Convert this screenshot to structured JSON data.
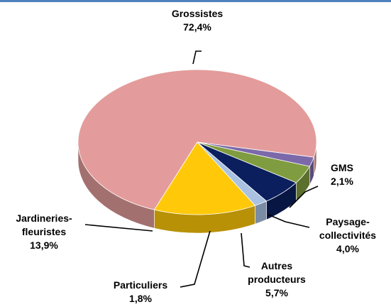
{
  "chart_data": {
    "type": "pie",
    "categories": [
      "Grossistes",
      "GMS",
      "Paysage-collectivités",
      "Autres producteurs",
      "Particuliers",
      "Jardineries-fleuristes"
    ],
    "values": [
      72.4,
      2.1,
      4.0,
      5.7,
      1.8,
      13.9
    ],
    "value_labels": [
      "72,4%",
      "2,1%",
      "4,0%",
      "5,7%",
      "1,8%",
      "13,9%"
    ],
    "colors": [
      "#e39c9b",
      "#7b69aa",
      "#809c40",
      "#0b1f5e",
      "#a9c2e2",
      "#ffc90a"
    ],
    "three_d": true
  }
}
